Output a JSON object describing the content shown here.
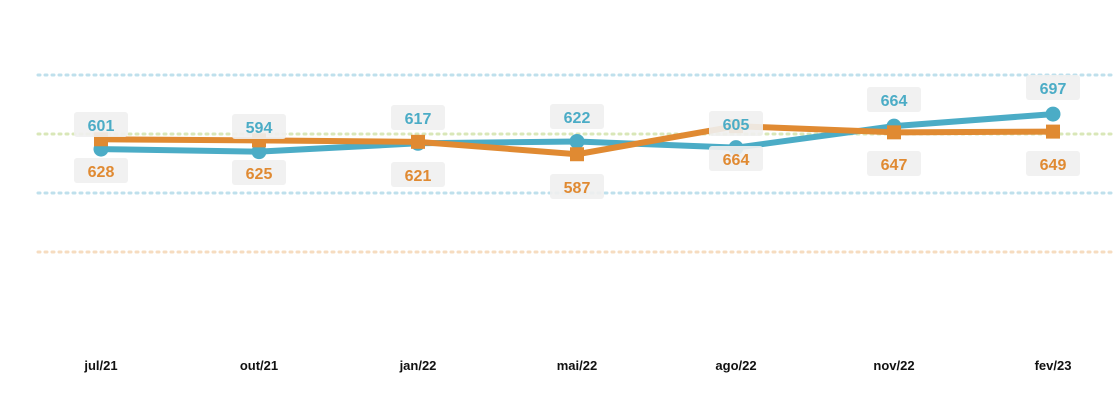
{
  "chart_data": {
    "type": "line",
    "categories": [
      "jul/21",
      "out/21",
      "jan/22",
      "mai/22",
      "ago/22",
      "nov/22",
      "fev/23"
    ],
    "series": [
      {
        "values": [
          601,
          594,
          617,
          622,
          605,
          664,
          697
        ],
        "labels": [
          "601",
          "594",
          "617",
          "622",
          "605",
          "664",
          "697"
        ],
        "color": "#4bacc6",
        "marker": "circle"
      },
      {
        "values": [
          628,
          625,
          621,
          587,
          664,
          647,
          649
        ],
        "labels": [
          "628",
          "625",
          "621",
          "587",
          "664",
          "647",
          "649"
        ],
        "color": "#e08a32",
        "marker": "square"
      }
    ],
    "title": "",
    "xlabel": "",
    "ylabel": "",
    "grid": true,
    "legend": "none",
    "colors": {
      "gridline_blue": "#bfe0ec",
      "gridline_green": "#d9e7b8",
      "gridline_orange": "#f6dcc0",
      "label_bg": "#efefef"
    }
  }
}
